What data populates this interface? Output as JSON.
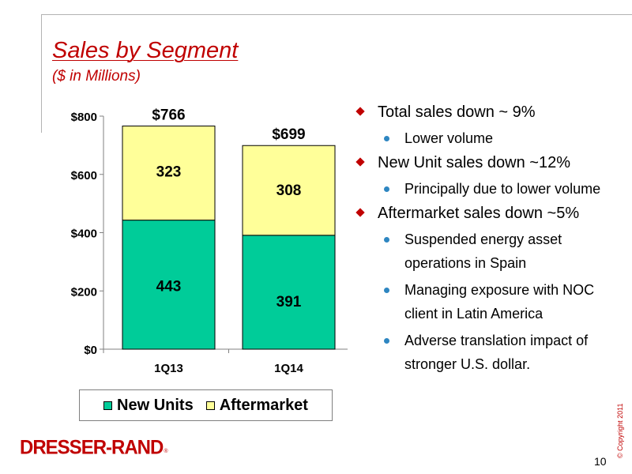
{
  "slide": {
    "title": "Sales by Segment",
    "subtitle": "($ in Millions)",
    "page_number": "10",
    "copyright": "© Copyright 2011",
    "logo_text": "DRESSER-RAND",
    "logo_mark": "®"
  },
  "chart_data": {
    "type": "bar",
    "stacked": true,
    "categories": [
      "1Q13",
      "1Q14"
    ],
    "series": [
      {
        "name": "New Units",
        "values": [
          443,
          391
        ],
        "color": "#00cc99"
      },
      {
        "name": "Aftermarket",
        "values": [
          323,
          308
        ],
        "color": "#ffff99"
      }
    ],
    "totals": [
      766,
      699
    ],
    "total_labels": [
      "$766",
      "$699"
    ],
    "data_labels": [
      [
        "443",
        "391"
      ],
      [
        "323",
        "308"
      ]
    ],
    "ylim": [
      0,
      800
    ],
    "yticks": [
      0,
      200,
      400,
      600,
      800
    ],
    "ytick_labels": [
      "$0",
      "$200",
      "$400",
      "$600",
      "$800"
    ],
    "grid": false,
    "legend_position": "bottom"
  },
  "bullets": [
    {
      "text": "Total sales down ~ 9%",
      "sub": [
        "Lower volume"
      ]
    },
    {
      "text": "New Unit sales down ~12%",
      "sub": [
        "Principally due to lower volume"
      ]
    },
    {
      "text": "Aftermarket sales down ~5%",
      "sub": [
        "Suspended energy asset operations in Spain",
        "Managing exposure with NOC client in Latin America",
        "Adverse translation impact of stronger U.S. dollar."
      ]
    }
  ],
  "colors": {
    "accent": "#c00000",
    "sub_bullet": "#2e86c1"
  }
}
